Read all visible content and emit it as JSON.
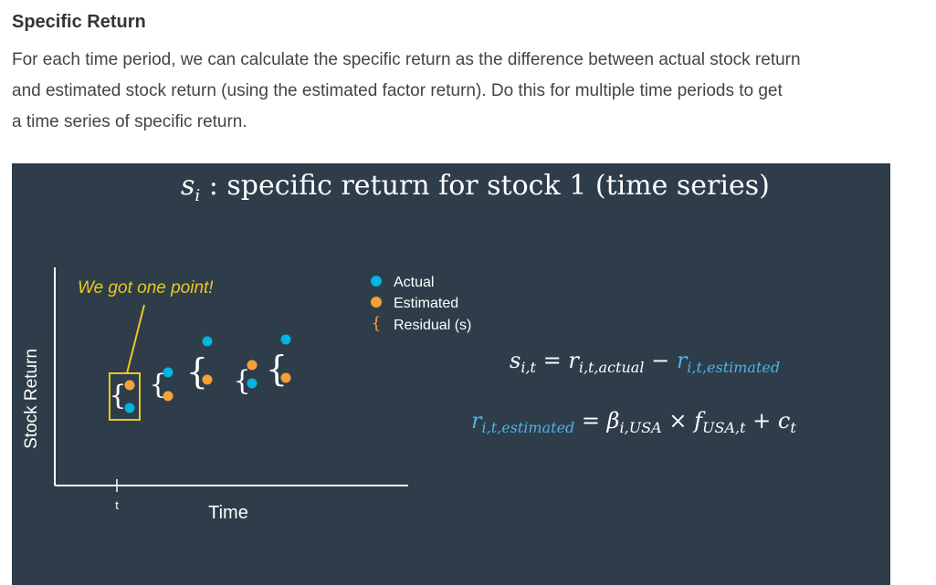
{
  "section": {
    "title": "Specific Return",
    "paragraph_lines": [
      "For each time period, we can calculate the specific return as the difference between actual stock return",
      "and estimated stock return (using the estimated factor return). Do this for multiple time periods to get",
      "a time series of specific return."
    ]
  },
  "diagram": {
    "title_symbol": "s",
    "title_subscript": "i",
    "title_text": " : specific return for stock 1 (time series)",
    "y_axis_label": "Stock Return",
    "x_axis_label": "Time",
    "tick_label": "t",
    "annotation": "We got one point!",
    "legend": {
      "actual": "Actual",
      "estimated": "Estimated",
      "residual": "Residual (s)"
    },
    "equation1": {
      "s": "s",
      "s_sub": "i,t",
      "eq": " = ",
      "r": "r",
      "r_sub": "i,t,actual",
      "minus": " − ",
      "r2": "r",
      "r2_sub": "i,t,estimated"
    },
    "equation2": {
      "r": "r",
      "r_sub": "i,t,estimated",
      "eq": " = ",
      "beta": "β",
      "beta_sub": "i,USA",
      "times": " × ",
      "f": "f",
      "f_sub": "USA,t",
      "plus": " + ",
      "c": "c",
      "c_sub": "t"
    },
    "colors": {
      "background": "#2e3d49",
      "actual": "#02b3e4",
      "estimated": "#f5a136",
      "highlight": "#e8c826",
      "residual": "#ffffff",
      "estimated_text": "#4fb3e8"
    }
  }
}
